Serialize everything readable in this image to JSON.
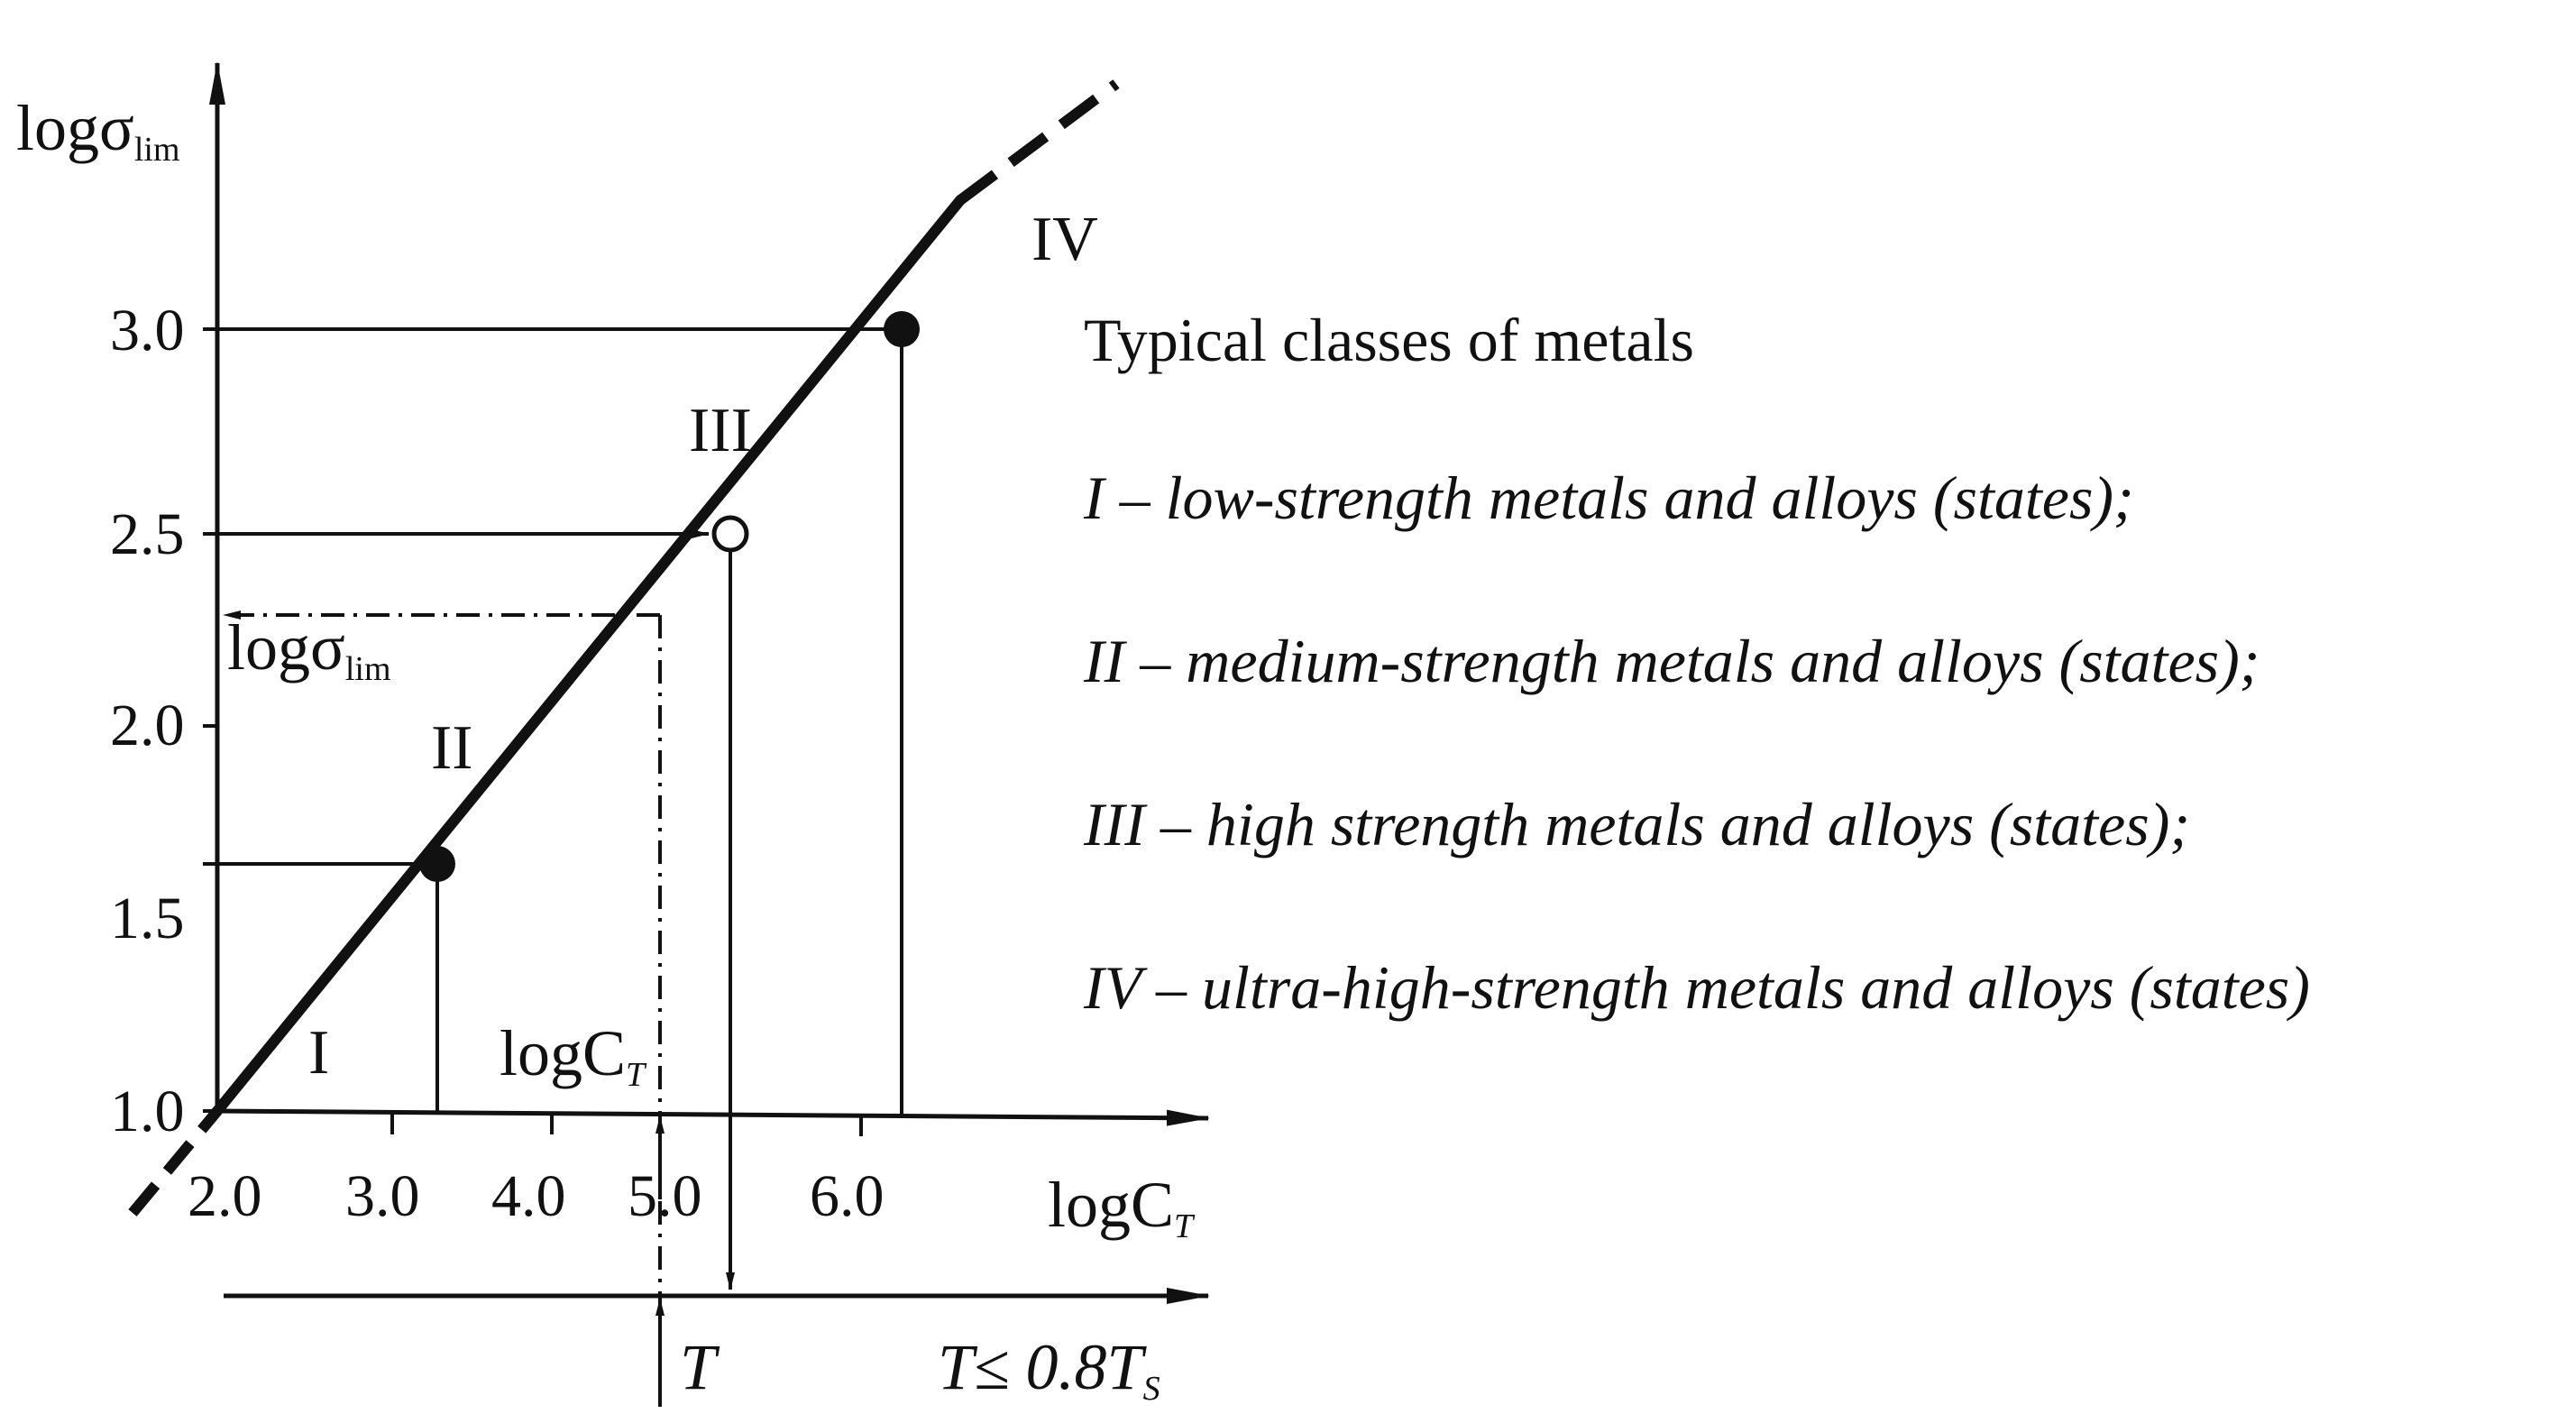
{
  "axes": {
    "y_label_main": "logσ",
    "y_label_sub": "lim",
    "x_label_main": "logC",
    "x_label_sub": "T",
    "y_ticks": [
      "1.0",
      "1.5",
      "2.0",
      "2.5",
      "3.0"
    ],
    "x_ticks": [
      "2.0",
      "3.0",
      "4.0",
      "5.0",
      "6.0"
    ]
  },
  "class_labels": [
    "I",
    "II",
    "III",
    "IV"
  ],
  "annotations": {
    "derived_y_main": "logσ",
    "derived_y_sub": "lim",
    "derived_x_main": "logC",
    "derived_x_sub": "T",
    "temperature_label": "T",
    "temperature_limit_prefix": "T≤ 0.8T",
    "temperature_limit_sub": "S"
  },
  "legend": {
    "title": "Typical classes of metals",
    "items": [
      "I – low-strength metals and alloys (states);",
      "II – medium-strength   metals and alloys (states);",
      "III – high strength metals and alloys (states);",
      "IV – ultra-high-strength metals and alloys (states)"
    ]
  },
  "points": [
    {
      "class": "II",
      "logC": 3.3,
      "logSigma": 1.65,
      "marker": "filled"
    },
    {
      "class": "III",
      "logC": 5.3,
      "logSigma": 2.5,
      "marker": "open"
    },
    {
      "class": "IV",
      "logC": 6.3,
      "logSigma": 3.0,
      "marker": "filled"
    }
  ],
  "colors": {
    "ink": "#111111",
    "background": "#ffffff"
  }
}
